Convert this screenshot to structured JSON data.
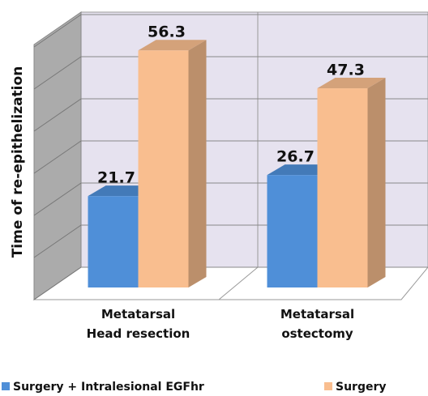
{
  "chart_data": {
    "type": "bar",
    "y_label": "Time of re-epithelization",
    "categories": [
      "Metatarsal\nHead resection",
      "Metatarsal\nostectomy"
    ],
    "series": [
      {
        "name": "Surgery + Intralesional EGFhr",
        "color": "#4f8fd8",
        "values": [
          21.7,
          26.7
        ]
      },
      {
        "name": "Surgery",
        "color": "#f9be8f",
        "values": [
          56.3,
          47.3
        ]
      }
    ],
    "ylim": [
      0,
      60
    ],
    "yticks": [
      0,
      10,
      20,
      30,
      40,
      50,
      60
    ],
    "grid": true
  }
}
